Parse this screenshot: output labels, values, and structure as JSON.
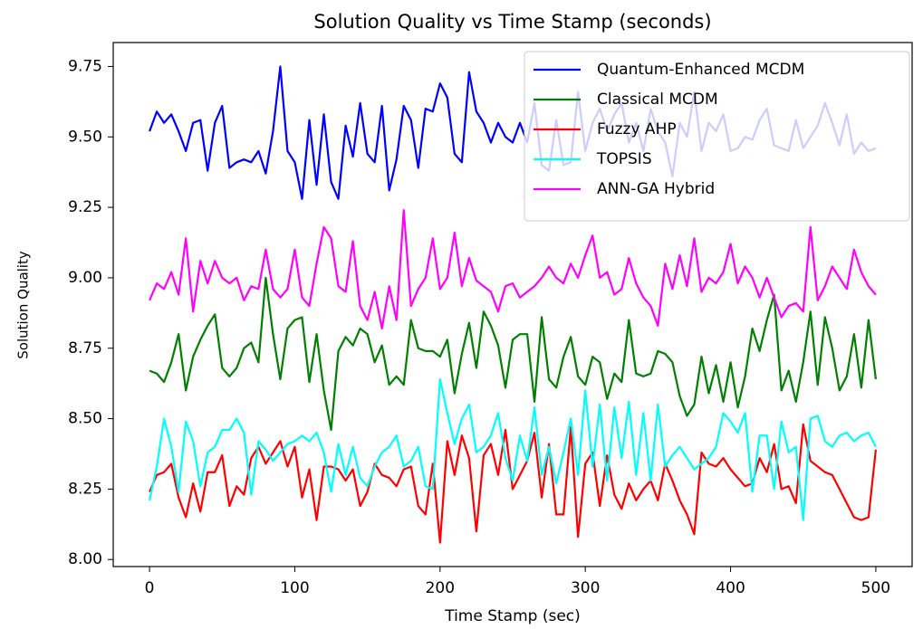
{
  "chart_data": {
    "type": "line",
    "title": "Solution Quality vs Time Stamp (seconds)",
    "x_label": "Time Stamp (sec)",
    "y_label": "Solution Quality",
    "x": [
      0,
      5,
      10,
      15,
      20,
      25,
      30,
      35,
      40,
      45,
      50,
      55,
      60,
      65,
      70,
      75,
      80,
      85,
      90,
      95,
      100,
      105,
      110,
      115,
      120,
      125,
      130,
      135,
      140,
      145,
      150,
      155,
      160,
      165,
      170,
      175,
      180,
      185,
      190,
      195,
      200,
      205,
      210,
      215,
      220,
      225,
      230,
      235,
      240,
      245,
      250,
      255,
      260,
      265,
      270,
      275,
      280,
      285,
      290,
      295,
      300,
      305,
      310,
      315,
      320,
      325,
      330,
      335,
      340,
      345,
      350,
      355,
      360,
      365,
      370,
      375,
      380,
      385,
      390,
      395,
      400,
      405,
      410,
      415,
      420,
      425,
      430,
      435,
      440,
      445,
      450,
      455,
      460,
      465,
      470,
      475,
      480,
      485,
      490,
      495,
      500
    ],
    "series": [
      {
        "name": "Quantum-Enhanced MCDM",
        "color": "#0000ff",
        "values": [
          9.52,
          9.59,
          9.55,
          9.58,
          9.52,
          9.45,
          9.55,
          9.56,
          9.38,
          9.55,
          9.61,
          9.39,
          9.41,
          9.42,
          9.41,
          9.45,
          9.37,
          9.52,
          9.75,
          9.45,
          9.41,
          9.28,
          9.56,
          9.33,
          9.58,
          9.34,
          9.28,
          9.54,
          9.43,
          9.62,
          9.44,
          9.41,
          9.61,
          9.31,
          9.42,
          9.61,
          9.56,
          9.39,
          9.6,
          9.59,
          9.69,
          9.64,
          9.44,
          9.41,
          9.73,
          9.59,
          9.55,
          9.48,
          9.55,
          9.5,
          9.48,
          9.55,
          9.48,
          9.62,
          9.4,
          9.38,
          9.56,
          9.4,
          9.41,
          9.66,
          9.45,
          9.55,
          9.6,
          9.52,
          9.58,
          9.62,
          9.48,
          9.55,
          9.45,
          9.6,
          9.52,
          9.48,
          9.36,
          9.55,
          9.5,
          9.66,
          9.45,
          9.55,
          9.52,
          9.58,
          9.45,
          9.46,
          9.5,
          9.49,
          9.56,
          9.6,
          9.47,
          9.46,
          9.45,
          9.56,
          9.46,
          9.5,
          9.54,
          9.62,
          9.55,
          9.47,
          9.58,
          9.44,
          9.48,
          9.45,
          9.46
        ]
      },
      {
        "name": "Classical MCDM",
        "color": "#008000",
        "values": [
          8.67,
          8.66,
          8.63,
          8.7,
          8.8,
          8.6,
          8.72,
          8.78,
          8.83,
          8.87,
          8.68,
          8.65,
          8.68,
          8.75,
          8.77,
          8.7,
          9.0,
          8.8,
          8.64,
          8.82,
          8.85,
          8.86,
          8.63,
          8.8,
          8.6,
          8.46,
          8.74,
          8.79,
          8.76,
          8.82,
          8.8,
          8.7,
          8.76,
          8.62,
          8.65,
          8.62,
          8.85,
          8.75,
          8.74,
          8.74,
          8.72,
          8.78,
          8.59,
          8.73,
          8.84,
          8.68,
          8.88,
          8.83,
          8.76,
          8.61,
          8.78,
          8.8,
          8.8,
          8.56,
          8.86,
          8.64,
          8.61,
          8.72,
          8.79,
          8.65,
          8.62,
          8.72,
          8.7,
          8.57,
          8.66,
          8.63,
          8.85,
          8.66,
          8.65,
          8.66,
          8.74,
          8.73,
          8.7,
          8.58,
          8.51,
          8.55,
          8.72,
          8.59,
          8.69,
          8.56,
          8.7,
          8.54,
          8.65,
          8.82,
          8.74,
          8.85,
          8.94,
          8.6,
          8.67,
          8.56,
          8.7,
          8.88,
          8.62,
          8.86,
          8.75,
          8.6,
          8.65,
          8.8,
          8.61,
          8.85,
          8.64
        ]
      },
      {
        "name": "Fuzzy AHP",
        "color": "#ff0000",
        "values": [
          8.24,
          8.3,
          8.31,
          8.34,
          8.22,
          8.15,
          8.27,
          8.17,
          8.31,
          8.31,
          8.37,
          8.19,
          8.26,
          8.23,
          8.36,
          8.4,
          8.34,
          8.38,
          8.42,
          8.33,
          8.4,
          8.22,
          8.32,
          8.14,
          8.33,
          8.33,
          8.32,
          8.28,
          8.32,
          8.19,
          8.24,
          8.34,
          8.3,
          8.29,
          8.26,
          8.32,
          8.33,
          8.19,
          8.16,
          8.34,
          8.06,
          8.42,
          8.3,
          8.44,
          8.36,
          8.1,
          8.37,
          8.41,
          8.3,
          8.46,
          8.25,
          8.3,
          8.35,
          8.45,
          8.22,
          8.41,
          8.16,
          8.16,
          8.47,
          8.08,
          8.34,
          8.38,
          8.19,
          8.37,
          8.23,
          8.18,
          8.27,
          8.21,
          8.25,
          8.28,
          8.21,
          8.34,
          8.28,
          8.21,
          8.16,
          8.09,
          8.38,
          8.34,
          8.33,
          8.36,
          8.32,
          8.29,
          8.26,
          8.27,
          8.36,
          8.31,
          8.41,
          8.25,
          8.26,
          8.2,
          8.48,
          8.35,
          8.33,
          8.31,
          8.3,
          8.25,
          8.2,
          8.15,
          8.14,
          8.15,
          8.39
        ]
      },
      {
        "name": "TOPSIS",
        "color": "#00ffff",
        "values": [
          8.21,
          8.33,
          8.5,
          8.4,
          8.24,
          8.49,
          8.42,
          8.26,
          8.38,
          8.4,
          8.46,
          8.46,
          8.5,
          8.45,
          8.23,
          8.42,
          8.39,
          8.35,
          8.38,
          8.41,
          8.42,
          8.44,
          8.42,
          8.45,
          8.38,
          8.24,
          8.41,
          8.3,
          8.4,
          8.29,
          8.26,
          8.33,
          8.38,
          8.4,
          8.44,
          8.33,
          8.35,
          8.4,
          8.26,
          8.25,
          8.64,
          8.52,
          8.41,
          8.5,
          8.55,
          8.38,
          8.4,
          8.44,
          8.52,
          8.36,
          8.28,
          8.44,
          8.35,
          8.54,
          8.3,
          8.4,
          8.27,
          8.38,
          8.5,
          8.3,
          8.6,
          8.33,
          8.55,
          8.28,
          8.54,
          8.36,
          8.56,
          8.3,
          8.52,
          8.28,
          8.55,
          8.33,
          8.37,
          8.4,
          8.36,
          8.32,
          8.34,
          8.36,
          8.4,
          8.52,
          8.49,
          8.45,
          8.52,
          8.24,
          8.44,
          8.44,
          8.25,
          8.49,
          8.38,
          8.4,
          8.14,
          8.5,
          8.51,
          8.42,
          8.4,
          8.44,
          8.45,
          8.42,
          8.44,
          8.45,
          8.4
        ]
      },
      {
        "name": "ANN-GA Hybrid",
        "color": "#ff00ff",
        "values": [
          8.92,
          8.98,
          8.96,
          9.02,
          8.94,
          9.14,
          8.88,
          9.06,
          8.98,
          9.06,
          9.0,
          8.98,
          9.0,
          8.92,
          8.97,
          8.96,
          9.1,
          8.96,
          8.93,
          8.96,
          9.1,
          8.93,
          8.9,
          9.05,
          9.18,
          9.14,
          8.97,
          8.95,
          9.13,
          8.9,
          8.85,
          8.95,
          8.82,
          8.97,
          8.85,
          9.24,
          8.9,
          8.96,
          9.0,
          9.14,
          8.96,
          9.0,
          9.16,
          8.97,
          9.07,
          8.99,
          8.97,
          8.95,
          8.88,
          8.97,
          8.98,
          8.93,
          8.95,
          8.97,
          9.0,
          9.04,
          9.0,
          8.98,
          9.05,
          9.0,
          9.08,
          9.15,
          9.0,
          9.02,
          8.94,
          8.96,
          9.07,
          8.98,
          8.93,
          8.9,
          8.83,
          9.05,
          8.96,
          9.08,
          8.97,
          9.14,
          8.95,
          9.0,
          8.98,
          9.02,
          9.12,
          8.98,
          9.04,
          9.0,
          8.93,
          9.0,
          8.93,
          8.86,
          8.9,
          8.91,
          8.88,
          9.18,
          8.92,
          8.97,
          9.04,
          9.0,
          8.96,
          9.1,
          9.02,
          8.97,
          8.94
        ]
      }
    ],
    "xlim": [
      -25,
      525
    ],
    "xticks": [
      0,
      100,
      200,
      300,
      400,
      500
    ],
    "ylim": [
      7.975,
      9.835
    ],
    "yticks": [
      {
        "value": 8,
        "label": "8.00"
      },
      {
        "value": 8.25,
        "label": "8.25"
      },
      {
        "value": 8.5,
        "label": "8.50"
      },
      {
        "value": 8.75,
        "label": "8.75"
      },
      {
        "value": 9,
        "label": "9.00"
      },
      {
        "value": 9.25,
        "label": "9.25"
      },
      {
        "value": 9.5,
        "label": "9.50"
      },
      {
        "value": 9.75,
        "label": "9.75"
      }
    ],
    "grid": false,
    "legend": "upper right"
  }
}
